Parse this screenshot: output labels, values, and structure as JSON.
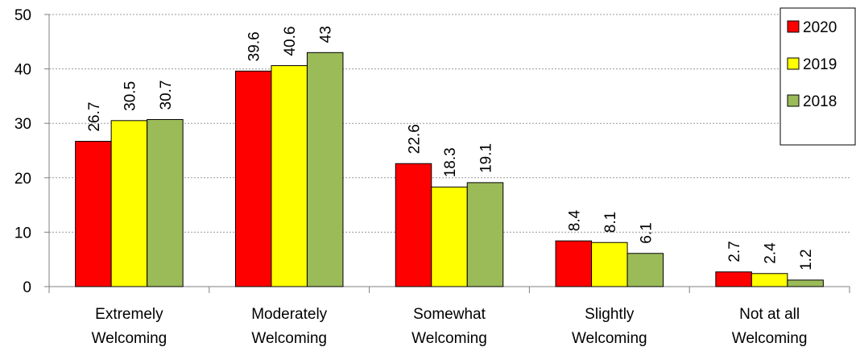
{
  "chart_data": {
    "type": "bar",
    "title": "",
    "xlabel": "",
    "ylabel": "",
    "ylim": [
      0,
      50
    ],
    "yticks": [
      0,
      10,
      20,
      30,
      40,
      50
    ],
    "grid": true,
    "legend_position": "top-right",
    "categories": [
      [
        "Extremely",
        "Welcoming"
      ],
      [
        "Moderately",
        "Welcoming"
      ],
      [
        "Somewhat",
        "Welcoming"
      ],
      [
        "Slightly",
        "Welcoming"
      ],
      [
        "Not at all",
        "Welcoming"
      ]
    ],
    "series": [
      {
        "name": "2020",
        "color": "#ff0000",
        "values": [
          26.7,
          39.6,
          22.6,
          8.4,
          2.7
        ]
      },
      {
        "name": "2019",
        "color": "#ffff00",
        "values": [
          30.5,
          40.6,
          18.3,
          8.1,
          2.4
        ]
      },
      {
        "name": "2018",
        "color": "#9bbb59",
        "values": [
          30.7,
          43,
          19.1,
          6.1,
          1.2
        ]
      }
    ]
  }
}
